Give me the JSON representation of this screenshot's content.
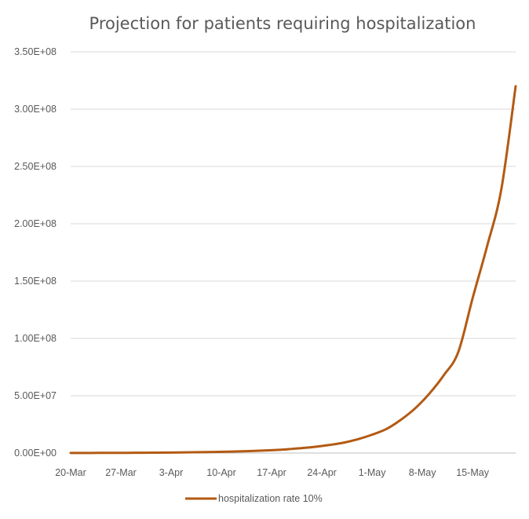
{
  "chart_data": {
    "type": "line",
    "title": "Projection for patients requiring hospitalization",
    "xlabel": "",
    "ylabel": "",
    "x_tick_labels": [
      "20-Mar",
      "27-Mar",
      "3-Apr",
      "10-Apr",
      "17-Apr",
      "24-Apr",
      "1-May",
      "8-May",
      "15-May"
    ],
    "y_tick_labels": [
      "0.00E+00",
      "5.00E+07",
      "1.00E+08",
      "1.50E+08",
      "2.00E+08",
      "2.50E+08",
      "3.00E+08",
      "3.50E+08"
    ],
    "y_ticks": [
      0,
      50000000,
      100000000,
      150000000,
      200000000,
      250000000,
      300000000,
      350000000
    ],
    "ylim": [
      0,
      350000000
    ],
    "xlim": [
      "2020-03-20",
      "2020-05-21"
    ],
    "grid": "horizontal",
    "legend": "bottom",
    "colors": {
      "series": "#b35a13",
      "grid": "#d9d9d9",
      "axis": "#bfbfbf",
      "text": "#595959"
    },
    "series": [
      {
        "name": "hospitalization rate 10%",
        "x": [
          "2020-03-20",
          "2020-03-22",
          "2020-03-24",
          "2020-03-26",
          "2020-03-28",
          "2020-03-30",
          "2020-04-01",
          "2020-04-03",
          "2020-04-05",
          "2020-04-07",
          "2020-04-09",
          "2020-04-11",
          "2020-04-13",
          "2020-04-15",
          "2020-04-17",
          "2020-04-19",
          "2020-04-21",
          "2020-04-23",
          "2020-04-25",
          "2020-04-27",
          "2020-04-29",
          "2020-05-01",
          "2020-05-03",
          "2020-05-05",
          "2020-05-07",
          "2020-05-09",
          "2020-05-11",
          "2020-05-13",
          "2020-05-15",
          "2020-05-17",
          "2020-05-19",
          "2020-05-21"
        ],
        "values": [
          80000,
          100000,
          130000,
          160000,
          210000,
          270000,
          340000,
          440000,
          570000,
          730000,
          940000,
          1200000,
          1500000,
          2000000,
          2500000,
          3200000,
          4200000,
          5400000,
          7000000,
          9000000,
          12000000,
          16000000,
          21000000,
          29000000,
          39000000,
          52000000,
          68000000,
          88000000,
          135000000,
          180000000,
          230000000,
          320000000
        ]
      }
    ]
  }
}
